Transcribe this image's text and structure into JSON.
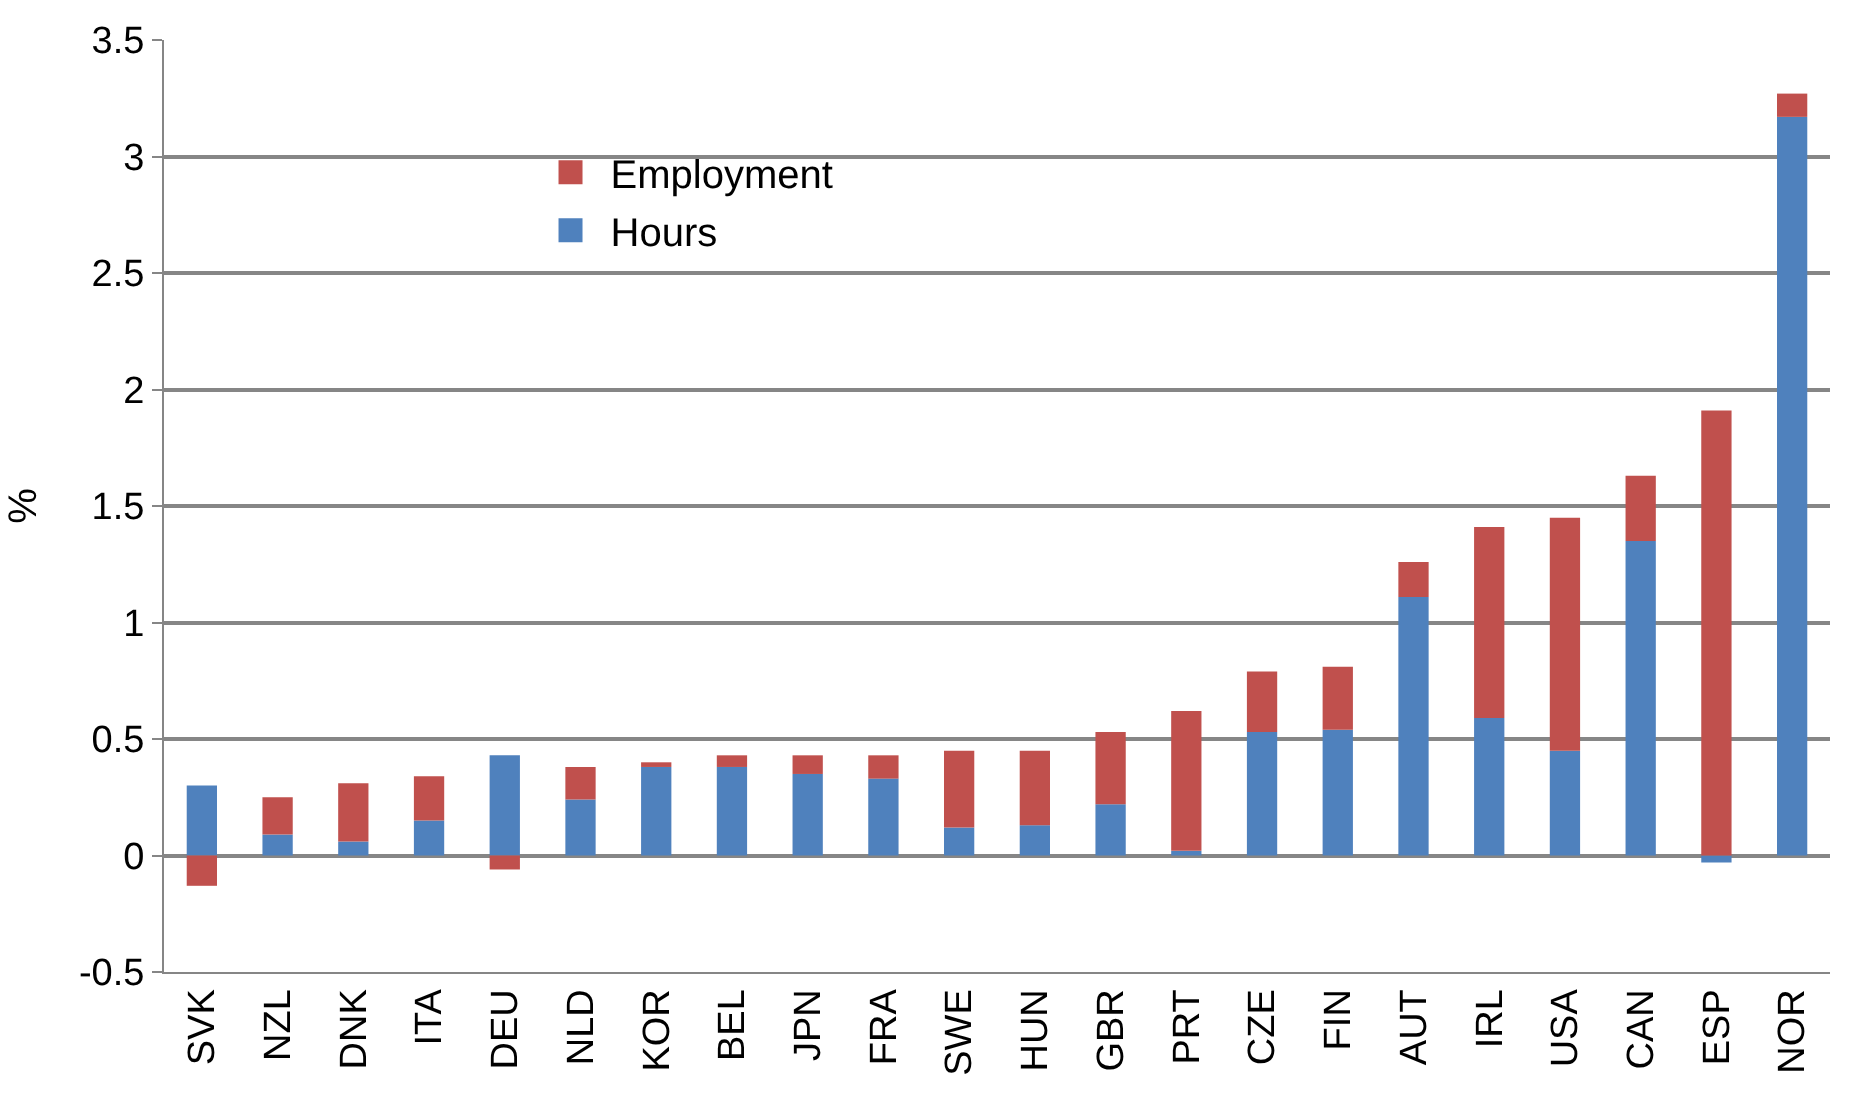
{
  "chart_data": {
    "type": "bar",
    "stacked": true,
    "ylabel": "%",
    "categories": [
      "SVK",
      "NZL",
      "DNK",
      "ITA",
      "DEU",
      "NLD",
      "KOR",
      "BEL",
      "JPN",
      "FRA",
      "SWE",
      "HUN",
      "GBR",
      "PRT",
      "CZE",
      "FIN",
      "AUT",
      "IRL",
      "USA",
      "CAN",
      "ESP",
      "NOR"
    ],
    "series": [
      {
        "name": "Hours",
        "color": "#4f81bd",
        "values": [
          0.3,
          0.09,
          0.06,
          0.15,
          0.43,
          0.24,
          0.38,
          0.38,
          0.35,
          0.33,
          0.12,
          0.13,
          0.22,
          0.02,
          0.53,
          0.54,
          1.11,
          0.59,
          0.45,
          1.35,
          -0.03,
          3.17
        ]
      },
      {
        "name": "Employment",
        "color": "#c0504d",
        "values": [
          -0.13,
          0.16,
          0.25,
          0.19,
          -0.06,
          0.14,
          0.02,
          0.05,
          0.08,
          0.1,
          0.33,
          0.32,
          0.31,
          0.6,
          0.26,
          0.27,
          0.15,
          0.82,
          1.0,
          0.28,
          1.91,
          0.1
        ]
      }
    ],
    "ylim": [
      -0.5,
      3.5
    ],
    "yticks": [
      {
        "value": -0.5,
        "label": "-0.5"
      },
      0,
      0.5,
      1,
      1.5,
      2,
      2.5,
      3,
      3.5
    ],
    "grid": "y",
    "legend": "top left"
  }
}
